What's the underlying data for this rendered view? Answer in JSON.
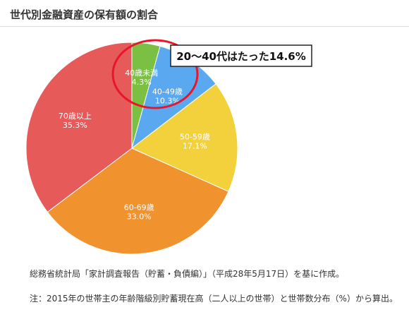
{
  "header": {
    "title": "世代別金融資産の保有額の割合"
  },
  "chart_data": {
    "type": "pie",
    "title": "世代別金融資産の保有額の割合",
    "slices": [
      {
        "label": "40歳未満",
        "value": 4.3,
        "value_label": "4.3%",
        "color": "#7bc043"
      },
      {
        "label": "40-49歳",
        "value": 10.3,
        "value_label": "10.3%",
        "color": "#5aa9f0"
      },
      {
        "label": "50-59歳",
        "value": 17.1,
        "value_label": "17.1%",
        "color": "#f2d13c"
      },
      {
        "label": "60-69歳",
        "value": 33.0,
        "value_label": "33.0%",
        "color": "#f0922e"
      },
      {
        "label": "70歳以上",
        "value": 35.3,
        "value_label": "35.3%",
        "color": "#e65a5a"
      }
    ],
    "start": "top",
    "direction": "clockwise",
    "annotation": {
      "text": "20〜40代はたった14.6%",
      "highlight_color": "#e8162b"
    }
  },
  "notes": {
    "source": "総務省統計局「家計調査報告（貯蓄・負債編）」（平成28年5月17日）を基に作成。",
    "footnote": "注：2015年の世帯主の年齢階級別貯蓄現在高（二人以上の世帯）と世帯数分布（%）から算出。"
  }
}
